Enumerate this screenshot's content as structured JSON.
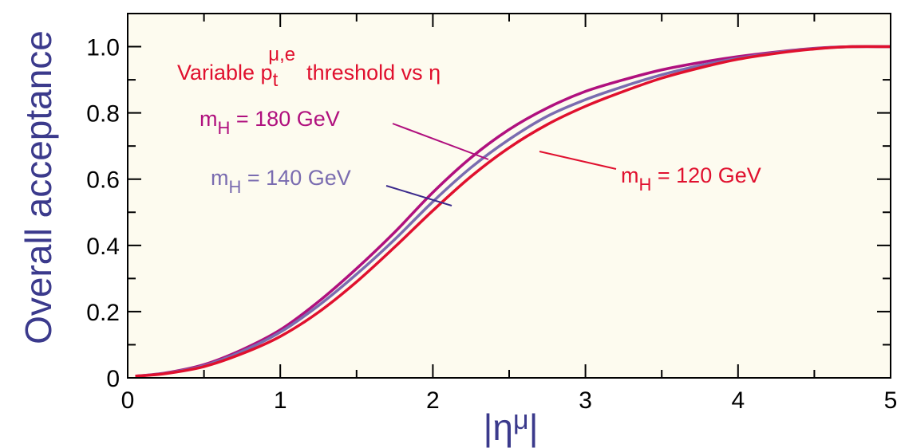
{
  "chart_data": {
    "type": "line",
    "xlabel_base": "|η",
    "xlabel_sup": "μ",
    "xlabel_end": "|",
    "ylabel": "Overall acceptance",
    "xlim": [
      0,
      5
    ],
    "ylim": [
      0,
      1.1
    ],
    "x_ticks": [
      0,
      1,
      2,
      3,
      4,
      5
    ],
    "x_tick_labels": [
      "0",
      "1",
      "2",
      "3",
      "4",
      "5"
    ],
    "y_ticks": [
      0,
      0.2,
      0.4,
      0.6,
      0.8,
      1.0
    ],
    "y_tick_labels": [
      "0",
      "0.2",
      "0.4",
      "0.6",
      "0.8",
      "1.0"
    ],
    "grid": false,
    "background": "#fdfbef",
    "header": {
      "pre": "Variable p",
      "sub": "t",
      "sup": "μ,e",
      "post": "threshold  vs  η",
      "color": "#e0102e"
    },
    "series": [
      {
        "label_base": "m",
        "label_sub": "H",
        "label_rest": " = 180 GeV",
        "color": "#b0107e",
        "x": [
          0.05,
          0.25,
          0.5,
          0.75,
          1.0,
          1.25,
          1.5,
          1.75,
          2.0,
          2.25,
          2.5,
          2.75,
          3.0,
          3.25,
          3.5,
          3.75,
          4.0,
          4.25,
          4.5,
          4.75,
          5.0
        ],
        "y": [
          0.005,
          0.015,
          0.04,
          0.085,
          0.145,
          0.23,
          0.33,
          0.44,
          0.56,
          0.665,
          0.75,
          0.815,
          0.865,
          0.9,
          0.93,
          0.952,
          0.97,
          0.984,
          0.995,
          1.0,
          1.0
        ]
      },
      {
        "label_base": "m",
        "label_sub": "H",
        "label_rest": " = 140 GeV",
        "color": "#7a6cb0",
        "x": [
          0.05,
          0.25,
          0.5,
          0.75,
          1.0,
          1.25,
          1.5,
          1.75,
          2.0,
          2.25,
          2.5,
          2.75,
          3.0,
          3.25,
          3.5,
          3.75,
          4.0,
          4.25,
          4.5,
          4.75,
          5.0
        ],
        "y": [
          0.005,
          0.014,
          0.037,
          0.08,
          0.138,
          0.218,
          0.313,
          0.418,
          0.532,
          0.635,
          0.72,
          0.79,
          0.84,
          0.88,
          0.915,
          0.943,
          0.965,
          0.982,
          0.994,
          1.0,
          1.0
        ]
      },
      {
        "label_base": "m",
        "label_sub": "H",
        "label_rest": " = 120 GeV",
        "color": "#e0102e",
        "x": [
          0.05,
          0.25,
          0.5,
          0.75,
          1.0,
          1.25,
          1.5,
          1.75,
          2.0,
          2.25,
          2.5,
          2.75,
          3.0,
          3.25,
          3.5,
          3.75,
          4.0,
          4.25,
          4.5,
          4.75,
          5.0
        ],
        "y": [
          0.005,
          0.013,
          0.034,
          0.073,
          0.125,
          0.198,
          0.29,
          0.395,
          0.505,
          0.608,
          0.695,
          0.765,
          0.82,
          0.865,
          0.905,
          0.936,
          0.962,
          0.98,
          0.993,
          1.0,
          1.0
        ]
      }
    ]
  }
}
